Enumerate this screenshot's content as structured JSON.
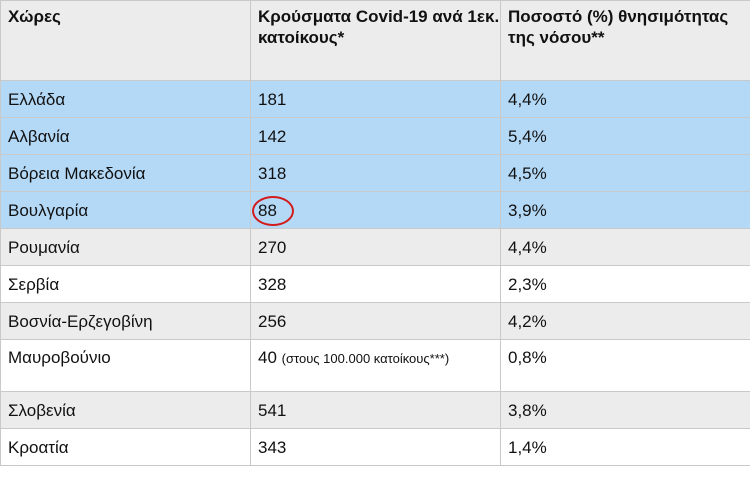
{
  "table": {
    "headers": [
      "Χώρες",
      "Κρούσματα Covid-19 ανά 1εκ. κατοίκους*",
      "Ποσοστό (%) θνησιμότητας της νόσου**"
    ],
    "rows": [
      {
        "country": "Ελλάδα",
        "cases": "181",
        "mortality": "4,4%"
      },
      {
        "country": "Αλβανία",
        "cases": "142",
        "mortality": "5,4%"
      },
      {
        "country": "Βόρεια Μακεδονία",
        "cases": "318",
        "mortality": "4,5%"
      },
      {
        "country": "Βουλγαρία",
        "cases": "88",
        "mortality": "3,9%"
      },
      {
        "country": "Ρουμανία",
        "cases": "270",
        "mortality": "4,4%"
      },
      {
        "country": "Σερβία",
        "cases": "328",
        "mortality": "2,3%"
      },
      {
        "country": "Βοσνία-Ερζεγοβίνη",
        "cases": "256",
        "mortality": "4,2%"
      },
      {
        "country": "Μαυροβούνιο",
        "cases": "40",
        "cases_note": "(στους 100.000 κατοίκους***)",
        "mortality": "0,8%"
      },
      {
        "country": "Σλοβενία",
        "cases": "541",
        "mortality": "3,8%"
      },
      {
        "country": "Κροατία",
        "cases": "343",
        "mortality": "1,4%"
      }
    ]
  },
  "colors": {
    "highlight_rows": "#b4d9f7",
    "header_bg": "#ececec",
    "circle": "#d21c1c"
  }
}
